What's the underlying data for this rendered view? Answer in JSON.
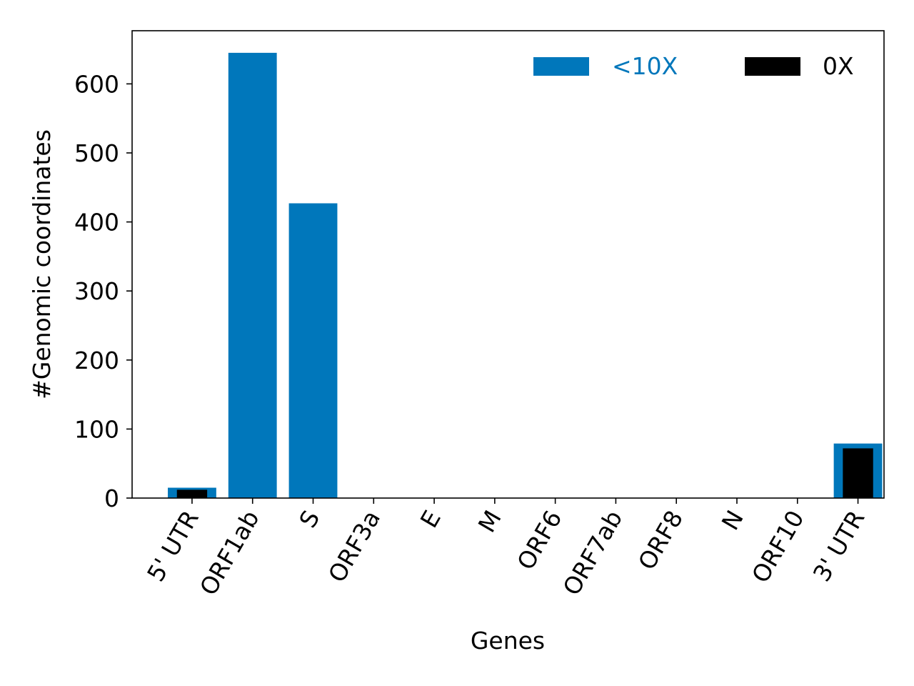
{
  "chart_data": {
    "type": "bar",
    "title": "",
    "xlabel": "Genes",
    "ylabel": "#Genomic coordinates",
    "categories": [
      "5' UTR",
      "ORF1ab",
      "S",
      "ORF3a",
      "E",
      "M",
      "ORF6",
      "ORF7ab",
      "ORF8",
      "N",
      "ORF10",
      "3' UTR"
    ],
    "series": [
      {
        "name": "<10X",
        "color": "#0077bb",
        "values": [
          15,
          645,
          427,
          0,
          0,
          0,
          0,
          0,
          0,
          0,
          0,
          79
        ]
      },
      {
        "name": "0X",
        "color": "#000000",
        "values": [
          12,
          0,
          0,
          0,
          0,
          0,
          0,
          0,
          0,
          0,
          0,
          72
        ]
      }
    ],
    "ylim": [
      0,
      677
    ],
    "yticks": [
      0,
      100,
      200,
      300,
      400,
      500,
      600
    ],
    "grid": false,
    "legend_position": "top-right"
  }
}
